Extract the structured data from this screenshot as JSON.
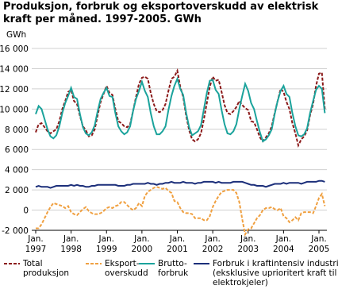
{
  "chart_data": {
    "type": "line",
    "title": "Produksjon, forbruk og eksportoverskudd av elektrisk kraft per måned. 1997-2005. GWh",
    "y_label": "GWh",
    "categories": [
      "Jan. 1997",
      null,
      null,
      null,
      null,
      null,
      null,
      null,
      null,
      null,
      null,
      null,
      "Jan. 1998",
      null,
      null,
      null,
      null,
      null,
      null,
      null,
      null,
      null,
      null,
      null,
      "Jan. 1999",
      null,
      null,
      null,
      null,
      null,
      null,
      null,
      null,
      null,
      null,
      null,
      "Jan. 2000",
      null,
      null,
      null,
      null,
      null,
      null,
      null,
      null,
      null,
      null,
      null,
      "Jan. 2001",
      null,
      null,
      null,
      null,
      null,
      null,
      null,
      null,
      null,
      null,
      null,
      "Jan. 2002",
      null,
      null,
      null,
      null,
      null,
      null,
      null,
      null,
      null,
      null,
      null,
      "Jan. 2003",
      null,
      null,
      null,
      null,
      null,
      null,
      null,
      null,
      null,
      null,
      null,
      "Jan. 2004",
      null,
      null,
      null,
      null,
      null,
      null,
      null,
      null,
      null,
      null,
      null,
      "Jan. 2005",
      null,
      null
    ],
    "ylim": [
      -2000,
      16000
    ],
    "yticks": [
      {
        "value": -2000,
        "label": "-2 000"
      },
      0,
      {
        "value": 2000,
        "label": "2 000"
      },
      {
        "value": 4000,
        "label": "4 000"
      },
      {
        "value": 6000,
        "label": "6 000"
      },
      {
        "value": 8000,
        "label": "8 000"
      },
      {
        "value": 10000,
        "label": "10 000"
      },
      {
        "value": 12000,
        "label": "12 000"
      },
      {
        "value": 14000,
        "label": "14 000"
      },
      {
        "value": 16000,
        "label": "16 000"
      }
    ],
    "grid": true,
    "series": [
      {
        "name": "Total produksjon",
        "color": "#8b1a1a",
        "dash": "4,2",
        "values": [
          7700,
          8500,
          8600,
          8200,
          7800,
          7600,
          7800,
          8000,
          8800,
          10000,
          10800,
          11700,
          11900,
          10800,
          10500,
          9300,
          8300,
          7900,
          7300,
          7400,
          8000,
          9400,
          10700,
          11500,
          12300,
          11600,
          11400,
          10000,
          8800,
          8600,
          8300,
          8200,
          8500,
          9800,
          11200,
          12500,
          13100,
          13200,
          13000,
          11600,
          10500,
          9800,
          9700,
          9900,
          10500,
          11800,
          13000,
          13200,
          13800,
          12200,
          11200,
          9300,
          7900,
          7000,
          6800,
          7000,
          7600,
          9000,
          10600,
          12200,
          13200,
          12800,
          12900,
          11700,
          10400,
          9600,
          9500,
          9800,
          10200,
          10800,
          10400,
          10100,
          9900,
          8800,
          8700,
          8000,
          7200,
          6800,
          7200,
          7600,
          8300,
          9600,
          10800,
          12000,
          11700,
          10700,
          10000,
          8600,
          7600,
          6400,
          7000,
          7300,
          7900,
          9400,
          10500,
          12300,
          13500,
          13600,
          10000
        ]
      },
      {
        "name": "Eksport-overskudd",
        "color": "#f0a040",
        "dash": "4,2",
        "values": [
          -1800,
          -1800,
          -1400,
          -800,
          -200,
          300,
          700,
          600,
          500,
          400,
          200,
          400,
          -200,
          -400,
          -500,
          -200,
          100,
          300,
          -100,
          -300,
          -400,
          -400,
          -300,
          -100,
          200,
          300,
          200,
          400,
          500,
          800,
          800,
          500,
          200,
          0,
          200,
          700,
          400,
          1400,
          1800,
          2000,
          2200,
          2300,
          2200,
          2100,
          2200,
          1900,
          1700,
          900,
          800,
          200,
          -200,
          -300,
          -300,
          -400,
          -800,
          -800,
          -800,
          -1000,
          -1000,
          -600,
          300,
          900,
          1400,
          1800,
          1900,
          2000,
          2000,
          2000,
          1700,
          800,
          -900,
          -2400,
          -1900,
          -1800,
          -1300,
          -800,
          -500,
          0,
          200,
          200,
          300,
          100,
          0,
          200,
          -600,
          -800,
          -1200,
          -1000,
          -700,
          -1000,
          -300,
          -200,
          -200,
          -200,
          -300,
          400,
          1200,
          1600,
          400
        ]
      },
      {
        "name": "Brutto-forbruk",
        "color": "#1ba39c",
        "dash": "",
        "values": [
          9500,
          10300,
          10000,
          9000,
          8000,
          7300,
          7100,
          7400,
          8300,
          9600,
          10600,
          11300,
          12100,
          11200,
          11000,
          9500,
          8200,
          7600,
          7400,
          7700,
          8400,
          9800,
          11000,
          11600,
          12100,
          11300,
          11200,
          9600,
          8300,
          7800,
          7500,
          7700,
          8300,
          9800,
          11000,
          11800,
          12700,
          11800,
          11200,
          9600,
          8300,
          7500,
          7500,
          7800,
          8300,
          9900,
          11300,
          12300,
          13000,
          12000,
          11400,
          9600,
          8200,
          7400,
          7600,
          7800,
          8400,
          10000,
          11600,
          12800,
          12900,
          11900,
          11500,
          9900,
          8500,
          7600,
          7500,
          7800,
          8500,
          10000,
          11300,
          12500,
          11800,
          10600,
          10000,
          8800,
          7700,
          6800,
          7000,
          7400,
          8000,
          9500,
          10800,
          11800,
          12300,
          11500,
          11200,
          9600,
          8300,
          7400,
          7300,
          7500,
          8100,
          9600,
          10800,
          11900,
          12300,
          12000,
          9600
        ]
      },
      {
        "name": "Forbruk i kraftintensiv industri (eksklusive uprioritert kraft til elektrokjeler)",
        "color": "#1c2f7a",
        "dash": "",
        "values": [
          2300,
          2400,
          2300,
          2300,
          2300,
          2200,
          2300,
          2400,
          2400,
          2400,
          2400,
          2400,
          2500,
          2400,
          2500,
          2400,
          2400,
          2300,
          2300,
          2400,
          2400,
          2500,
          2500,
          2500,
          2500,
          2500,
          2500,
          2500,
          2400,
          2400,
          2400,
          2500,
          2500,
          2600,
          2600,
          2600,
          2600,
          2600,
          2700,
          2600,
          2600,
          2500,
          2600,
          2600,
          2700,
          2700,
          2800,
          2700,
          2700,
          2700,
          2800,
          2700,
          2700,
          2700,
          2600,
          2700,
          2700,
          2800,
          2800,
          2800,
          2800,
          2700,
          2800,
          2700,
          2700,
          2700,
          2700,
          2800,
          2800,
          2800,
          2800,
          2700,
          2600,
          2500,
          2500,
          2400,
          2400,
          2400,
          2300,
          2400,
          2500,
          2600,
          2600,
          2600,
          2700,
          2600,
          2700,
          2700,
          2700,
          2700,
          2600,
          2700,
          2800,
          2800,
          2800,
          2800,
          2900,
          2900,
          2800
        ]
      }
    ]
  }
}
